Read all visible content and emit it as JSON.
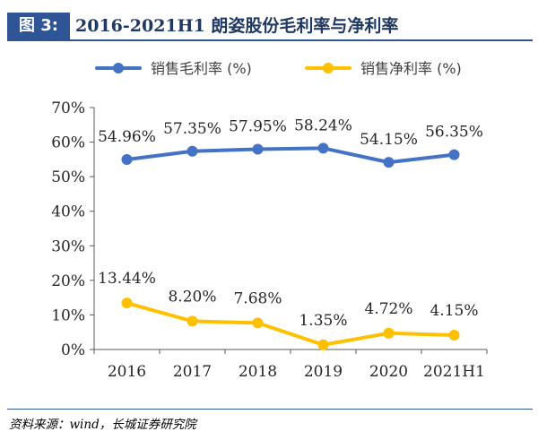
{
  "header": {
    "label": "图 3:",
    "title": "2016-2021H1 朗姿股份毛利率与净利率"
  },
  "source": "资料来源：wind，长城证券研究院",
  "colors": {
    "accent": "#2f5597",
    "gross_series": "#4472c4",
    "net_series": "#ffc000"
  },
  "chart_data": {
    "type": "line",
    "title": "",
    "xlabel": "",
    "ylabel": "",
    "x": [
      "2016",
      "2017",
      "2018",
      "2019",
      "2020",
      "2021H1"
    ],
    "ylim": [
      0,
      70
    ],
    "yticks": [
      "0%",
      "10%",
      "20%",
      "30%",
      "40%",
      "50%",
      "60%",
      "70%"
    ],
    "grid": false,
    "legend": "top",
    "series": [
      {
        "name": "销售毛利率 (%)",
        "color": "#4472c4",
        "values": [
          54.96,
          57.35,
          57.95,
          58.24,
          54.15,
          56.35
        ],
        "labels": [
          "54.96%",
          "57.35%",
          "57.95%",
          "58.24%",
          "54.15%",
          "56.35%"
        ]
      },
      {
        "name": "销售净利率 (%)",
        "color": "#ffc000",
        "values": [
          13.44,
          8.2,
          7.68,
          1.35,
          4.72,
          4.15
        ],
        "labels": [
          "13.44%",
          "8.20%",
          "7.68%",
          "1.35%",
          "4.72%",
          "4.15%"
        ]
      }
    ]
  }
}
